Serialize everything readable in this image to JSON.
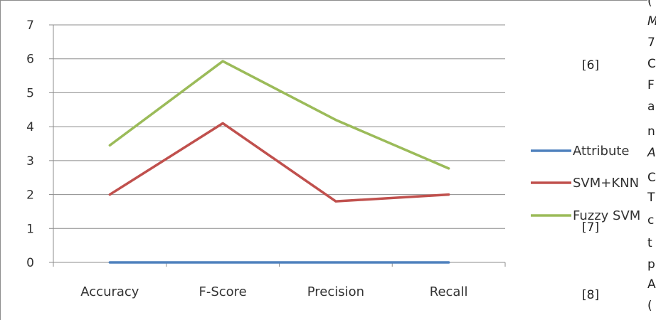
{
  "chart_data": {
    "type": "line",
    "categories": [
      "Accuracy",
      "F-Score",
      "Precision",
      "Recall"
    ],
    "series": [
      {
        "name": "Attribute",
        "values": [
          0,
          0,
          0,
          0
        ],
        "color": "#4f81bd"
      },
      {
        "name": "SVM+KNN",
        "values": [
          2.0,
          4.1,
          1.8,
          2.0
        ],
        "color": "#c0504d"
      },
      {
        "name": "Fuzzy SVM",
        "values": [
          3.45,
          5.93,
          4.2,
          2.77
        ],
        "color": "#9bbb59"
      }
    ],
    "y_ticks": [
      "0",
      "1",
      "2",
      "3",
      "4",
      "5",
      "6",
      "7"
    ],
    "ylim": [
      0,
      7
    ],
    "grid": true,
    "legend": "right"
  },
  "side_text": {
    "ref6": "[6]",
    "ref7": "[7]",
    "ref8": "[8]",
    "column_letters": [
      "(",
      "M",
      "7",
      "C",
      "F",
      "a",
      "n",
      "A",
      "C",
      "T",
      "c",
      "t",
      "p",
      "A",
      "("
    ]
  }
}
